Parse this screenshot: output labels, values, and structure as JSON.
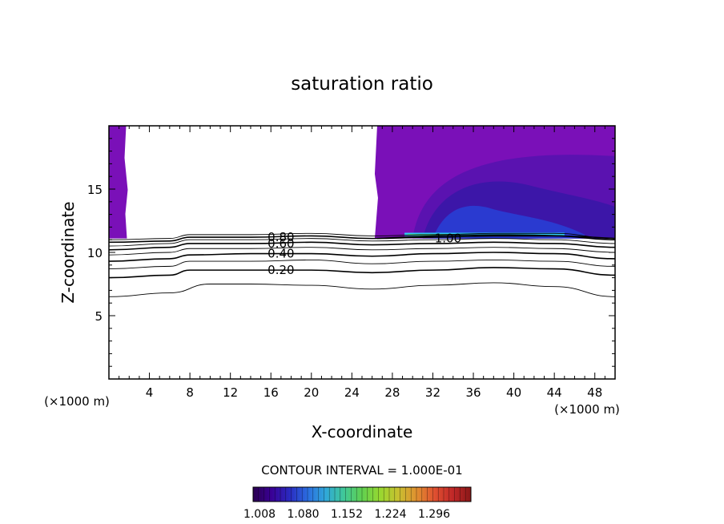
{
  "chart_data": {
    "type": "contour",
    "title": "saturation ratio",
    "xlabel": "X-coordinate",
    "ylabel": "Z-coordinate",
    "x_unit_left": "(×1000 m)",
    "x_unit_right": "(×1000 m)",
    "xlim": [
      0,
      50
    ],
    "ylim": [
      0,
      20
    ],
    "x_ticks": [
      4,
      8,
      12,
      16,
      20,
      24,
      28,
      32,
      36,
      40,
      44,
      48
    ],
    "y_ticks": [
      5,
      10,
      15
    ],
    "contour_interval_text": "CONTOUR INTERVAL = 1.000E-01",
    "contour_labels": [
      {
        "text": "0.80",
        "x": 17.0,
        "z": 11.2
      },
      {
        "text": "0.60",
        "x": 17.0,
        "z": 10.7
      },
      {
        "text": "0.40",
        "x": 17.0,
        "z": 9.9
      },
      {
        "text": "0.20",
        "x": 17.0,
        "z": 8.6
      },
      {
        "text": "1.00",
        "x": 33.5,
        "z": 11.1
      }
    ],
    "contour_lines": [
      {
        "level": 0.1,
        "points": [
          [
            0,
            6.5
          ],
          [
            6,
            6.8
          ],
          [
            10,
            7.5
          ],
          [
            14,
            7.5
          ],
          [
            20,
            7.4
          ],
          [
            26,
            7.1
          ],
          [
            32,
            7.4
          ],
          [
            38,
            7.6
          ],
          [
            44,
            7.3
          ],
          [
            50,
            6.5
          ]
        ]
      },
      {
        "level": 0.2,
        "points": [
          [
            0,
            8.0
          ],
          [
            6,
            8.2
          ],
          [
            8,
            8.6
          ],
          [
            14,
            8.6
          ],
          [
            20,
            8.6
          ],
          [
            26,
            8.4
          ],
          [
            32,
            8.6
          ],
          [
            38,
            8.8
          ],
          [
            44,
            8.7
          ],
          [
            50,
            8.2
          ]
        ]
      },
      {
        "level": 0.3,
        "points": [
          [
            0,
            8.7
          ],
          [
            6,
            8.9
          ],
          [
            8,
            9.3
          ],
          [
            14,
            9.3
          ],
          [
            20,
            9.4
          ],
          [
            26,
            9.1
          ],
          [
            32,
            9.3
          ],
          [
            38,
            9.4
          ],
          [
            44,
            9.3
          ],
          [
            50,
            8.9
          ]
        ]
      },
      {
        "level": 0.4,
        "points": [
          [
            0,
            9.3
          ],
          [
            6,
            9.5
          ],
          [
            8,
            9.8
          ],
          [
            14,
            9.9
          ],
          [
            20,
            9.9
          ],
          [
            26,
            9.7
          ],
          [
            32,
            9.9
          ],
          [
            38,
            10.0
          ],
          [
            44,
            9.9
          ],
          [
            50,
            9.5
          ]
        ]
      },
      {
        "level": 0.5,
        "points": [
          [
            0,
            9.8
          ],
          [
            6,
            10.0
          ],
          [
            8,
            10.3
          ],
          [
            14,
            10.3
          ],
          [
            20,
            10.4
          ],
          [
            26,
            10.2
          ],
          [
            32,
            10.3
          ],
          [
            38,
            10.4
          ],
          [
            44,
            10.3
          ],
          [
            50,
            10.0
          ]
        ]
      },
      {
        "level": 0.6,
        "points": [
          [
            0,
            10.2
          ],
          [
            6,
            10.4
          ],
          [
            8,
            10.7
          ],
          [
            14,
            10.7
          ],
          [
            20,
            10.8
          ],
          [
            26,
            10.6
          ],
          [
            32,
            10.7
          ],
          [
            38,
            10.8
          ],
          [
            44,
            10.7
          ],
          [
            50,
            10.4
          ]
        ]
      },
      {
        "level": 0.7,
        "points": [
          [
            0,
            10.5
          ],
          [
            6,
            10.7
          ],
          [
            8,
            11.0
          ],
          [
            14,
            11.0
          ],
          [
            20,
            11.1
          ],
          [
            26,
            10.9
          ],
          [
            32,
            11.0
          ],
          [
            38,
            11.1
          ],
          [
            44,
            11.0
          ],
          [
            50,
            10.7
          ]
        ]
      },
      {
        "level": 0.8,
        "points": [
          [
            0,
            10.8
          ],
          [
            6,
            10.9
          ],
          [
            8,
            11.2
          ],
          [
            14,
            11.2
          ],
          [
            20,
            11.3
          ],
          [
            26,
            11.1
          ],
          [
            32,
            11.2
          ],
          [
            38,
            11.3
          ],
          [
            44,
            11.3
          ],
          [
            50,
            11.0
          ]
        ]
      },
      {
        "level": 0.9,
        "points": [
          [
            0,
            11.0
          ],
          [
            6,
            11.1
          ],
          [
            8,
            11.4
          ],
          [
            14,
            11.4
          ],
          [
            20,
            11.5
          ],
          [
            26,
            11.3
          ],
          [
            32,
            11.4
          ],
          [
            38,
            11.5
          ],
          [
            44,
            11.5
          ],
          [
            50,
            11.1
          ]
        ]
      }
    ],
    "shaded_regions": [
      {
        "name": "left",
        "x_range": [
          0,
          1.7
        ],
        "z_range": [
          11.1,
          20
        ]
      },
      {
        "name": "right",
        "x_range": [
          26.5,
          50
        ],
        "z_range": [
          11.1,
          20
        ]
      }
    ],
    "colorbar": {
      "tick_labels": [
        "1.008",
        "1.080",
        "1.152",
        "1.224",
        "1.296"
      ],
      "colors": [
        "#2a0050",
        "#3a0095",
        "#2a2ac0",
        "#2b6de0",
        "#30a8d8",
        "#40c898",
        "#60d050",
        "#98d830",
        "#c8c030",
        "#e09030",
        "#e05030",
        "#c02828",
        "#8a1818"
      ]
    },
    "fill_colors": {
      "outer": "#7a10b8",
      "mid": "#5a12b0",
      "deep": "#3c16a8",
      "core": "#2a3ad0",
      "cyan": "#30c8f0",
      "green": "#50e090"
    }
  }
}
